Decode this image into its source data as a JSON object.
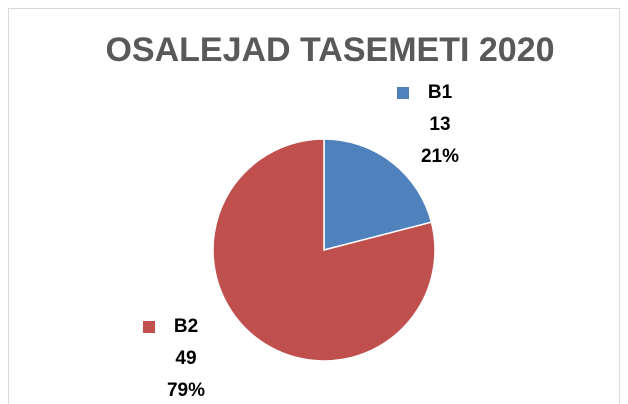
{
  "chart_data": {
    "type": "pie",
    "title": "OSALEJAD TASEMETI 2020",
    "categories": [
      "B1",
      "B2"
    ],
    "values": [
      13,
      49
    ],
    "percent_labels": [
      "21%",
      "79%"
    ],
    "colors": [
      "#4f81bd",
      "#c0504d"
    ]
  }
}
